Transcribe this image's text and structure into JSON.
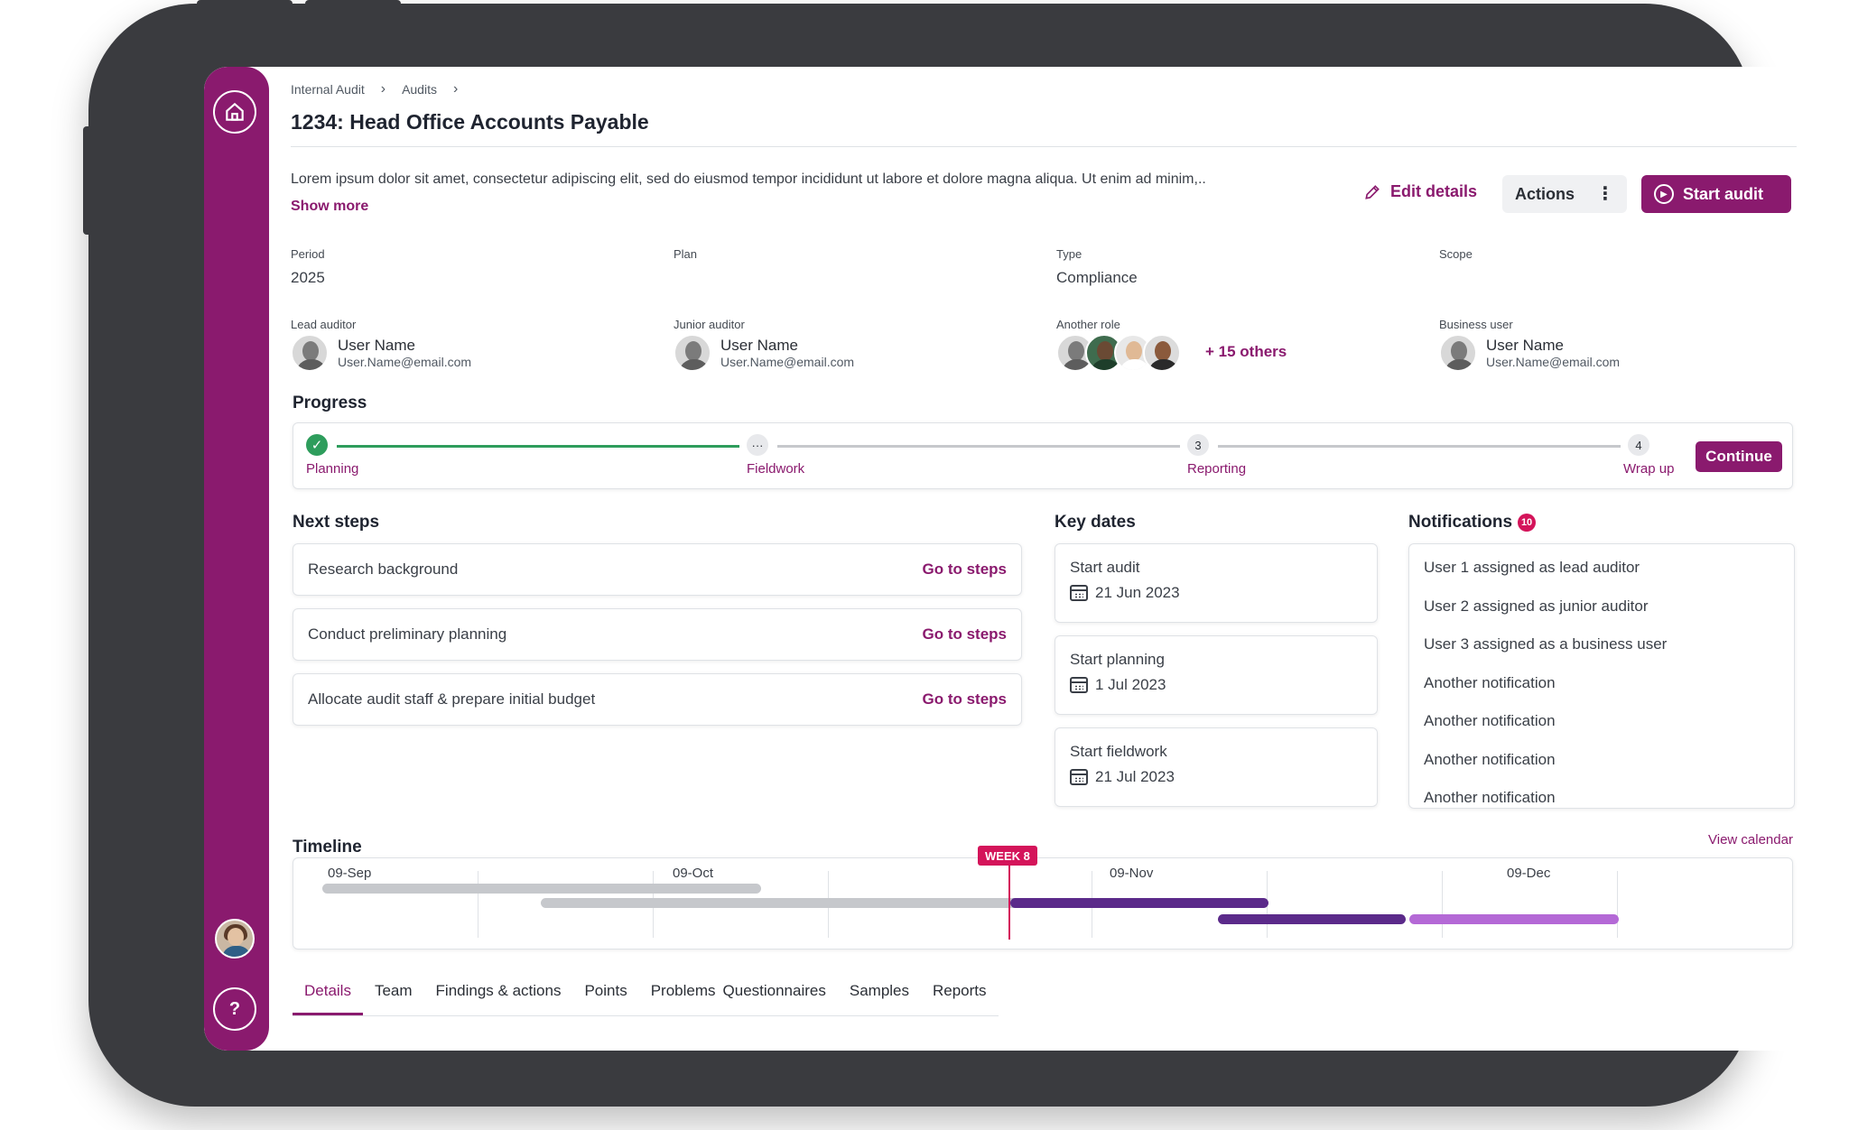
{
  "breadcrumb": [
    "Internal Audit",
    "Audits"
  ],
  "title": "1234: Head Office Accounts Payable",
  "description": "Lorem ipsum dolor sit amet, consectetur adipiscing elit, sed do eiusmod tempor incididunt ut labore et dolore magna aliqua. Ut enim ad minim,..",
  "show_more": "Show more",
  "buttons": {
    "edit": "Edit details",
    "actions": "Actions",
    "start": "Start audit",
    "continue": "Continue"
  },
  "fields": {
    "period": {
      "label": "Period",
      "value": "2025"
    },
    "plan": {
      "label": "Plan",
      "value": ""
    },
    "type": {
      "label": "Type",
      "value": "Compliance"
    },
    "scope": {
      "label": "Scope",
      "value": ""
    }
  },
  "people": {
    "lead": {
      "label": "Lead auditor",
      "name": "User Name",
      "email": "User.Name@email.com"
    },
    "junior": {
      "label": "Junior auditor",
      "name": "User Name",
      "email": "User.Name@email.com"
    },
    "another": {
      "label": "Another role",
      "others": "+ 15 others"
    },
    "business": {
      "label": "Business user",
      "name": "User Name",
      "email": "User.Name@email.com"
    }
  },
  "progress": {
    "title": "Progress",
    "steps": [
      {
        "label": "Planning",
        "marker": "✓",
        "status": "done"
      },
      {
        "label": "Fieldwork",
        "marker": "···",
        "status": "current"
      },
      {
        "label": "Reporting",
        "marker": "3",
        "status": "todo"
      },
      {
        "label": "Wrap up",
        "marker": "4",
        "status": "todo"
      }
    ]
  },
  "next_steps": {
    "title": "Next steps",
    "link": "Go to steps",
    "items": [
      "Research background",
      "Conduct preliminary planning",
      "Allocate audit staff & prepare initial budget"
    ]
  },
  "key_dates": {
    "title": "Key dates",
    "items": [
      {
        "label": "Start audit",
        "date": "21 Jun 2023"
      },
      {
        "label": "Start planning",
        "date": "1 Jul 2023"
      },
      {
        "label": "Start fieldwork",
        "date": "21 Jul 2023"
      }
    ]
  },
  "notifications": {
    "title": "Notifications",
    "count": "10",
    "items": [
      "User 1 assigned as lead auditor",
      "User 2 assigned as junior auditor",
      "User 3 assigned as a business user",
      "Another notification",
      "Another notification",
      "Another notification",
      "Another notification"
    ]
  },
  "timeline": {
    "title": "Timeline",
    "view_calendar": "View calendar",
    "week_marker": "WEEK 8",
    "months": [
      "09-Sep",
      "09-Oct",
      "09-Nov",
      "09-Dec"
    ],
    "colors": {
      "grey": "#c6c8cc",
      "purple": "#5b2a8a",
      "lilac": "#b469d6",
      "marker": "#d4145a"
    }
  },
  "tabs": [
    "Details",
    "Team",
    "Findings & actions",
    "Points",
    "Problems",
    "Questionnaires",
    "Samples",
    "Reports"
  ],
  "icons": {
    "home": "home-icon",
    "help": "help-icon",
    "edit": "pencil-icon",
    "more": "kebab-icon",
    "play": "play-icon",
    "calendar": "calendar-icon"
  },
  "colors": {
    "brand": "#8a1a6e",
    "success": "#2e9d5c",
    "badge": "#d4145a"
  }
}
